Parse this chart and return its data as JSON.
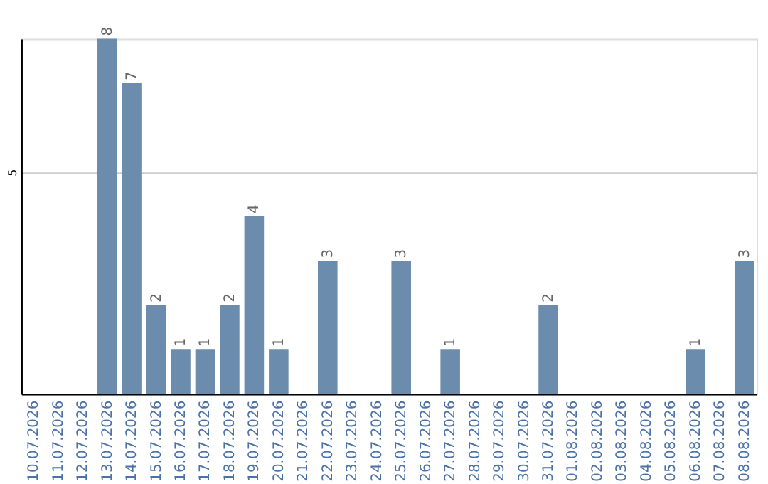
{
  "chart_data": {
    "type": "bar",
    "categories": [
      "10.07.2026",
      "11.07.2026",
      "12.07.2026",
      "13.07.2026",
      "14.07.2026",
      "15.07.2026",
      "16.07.2026",
      "17.07.2026",
      "18.07.2026",
      "19.07.2026",
      "20.07.2026",
      "21.07.2026",
      "22.07.2026",
      "23.07.2026",
      "24.07.2026",
      "25.07.2026",
      "26.07.2026",
      "27.07.2026",
      "28.07.2026",
      "29.07.2026",
      "30.07.2026",
      "31.07.2026",
      "01.08.2026",
      "02.08.2026",
      "03.08.2026",
      "04.08.2026",
      "05.08.2026",
      "06.08.2026",
      "07.08.2026",
      "08.08.2026"
    ],
    "values": [
      0,
      0,
      0,
      8,
      7,
      2,
      1,
      1,
      2,
      4,
      1,
      0,
      3,
      0,
      0,
      3,
      0,
      1,
      0,
      0,
      0,
      2,
      0,
      0,
      0,
      0,
      0,
      1,
      0,
      3
    ],
    "value_labels": [
      null,
      null,
      null,
      "8",
      "7",
      "2",
      "1",
      "1",
      "2",
      "4",
      "1",
      null,
      "3",
      null,
      null,
      "3",
      null,
      "1",
      null,
      null,
      null,
      "2",
      null,
      null,
      null,
      null,
      null,
      "1",
      null,
      "3"
    ],
    "color": "#6b8cad",
    "ylim": [
      0,
      8
    ],
    "yticks": [
      5
    ],
    "grid": "y"
  }
}
